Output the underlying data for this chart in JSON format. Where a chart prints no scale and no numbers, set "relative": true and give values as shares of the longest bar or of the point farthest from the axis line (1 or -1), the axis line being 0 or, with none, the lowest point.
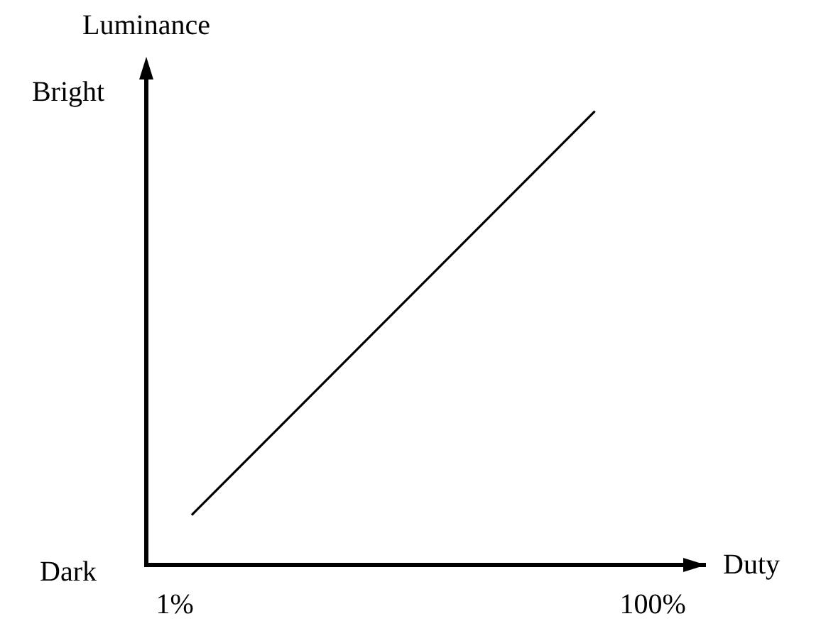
{
  "chart_data": {
    "type": "line",
    "xlabel": "Duty",
    "ylabel": "Luminance",
    "relative": true,
    "x": [
      4.5,
      88
    ],
    "series": [
      {
        "color": "#000000",
        "values": [
          0.11,
          1
        ]
      }
    ],
    "xlim": [
      -4.9,
      111
    ],
    "xticks": [
      {
        "value": 1,
        "label": "1%"
      },
      {
        "value": 100,
        "label": "100%"
      }
    ],
    "annotations": [
      "Dark",
      "Bright"
    ],
    "marker": "none",
    "line_style": "solid"
  }
}
